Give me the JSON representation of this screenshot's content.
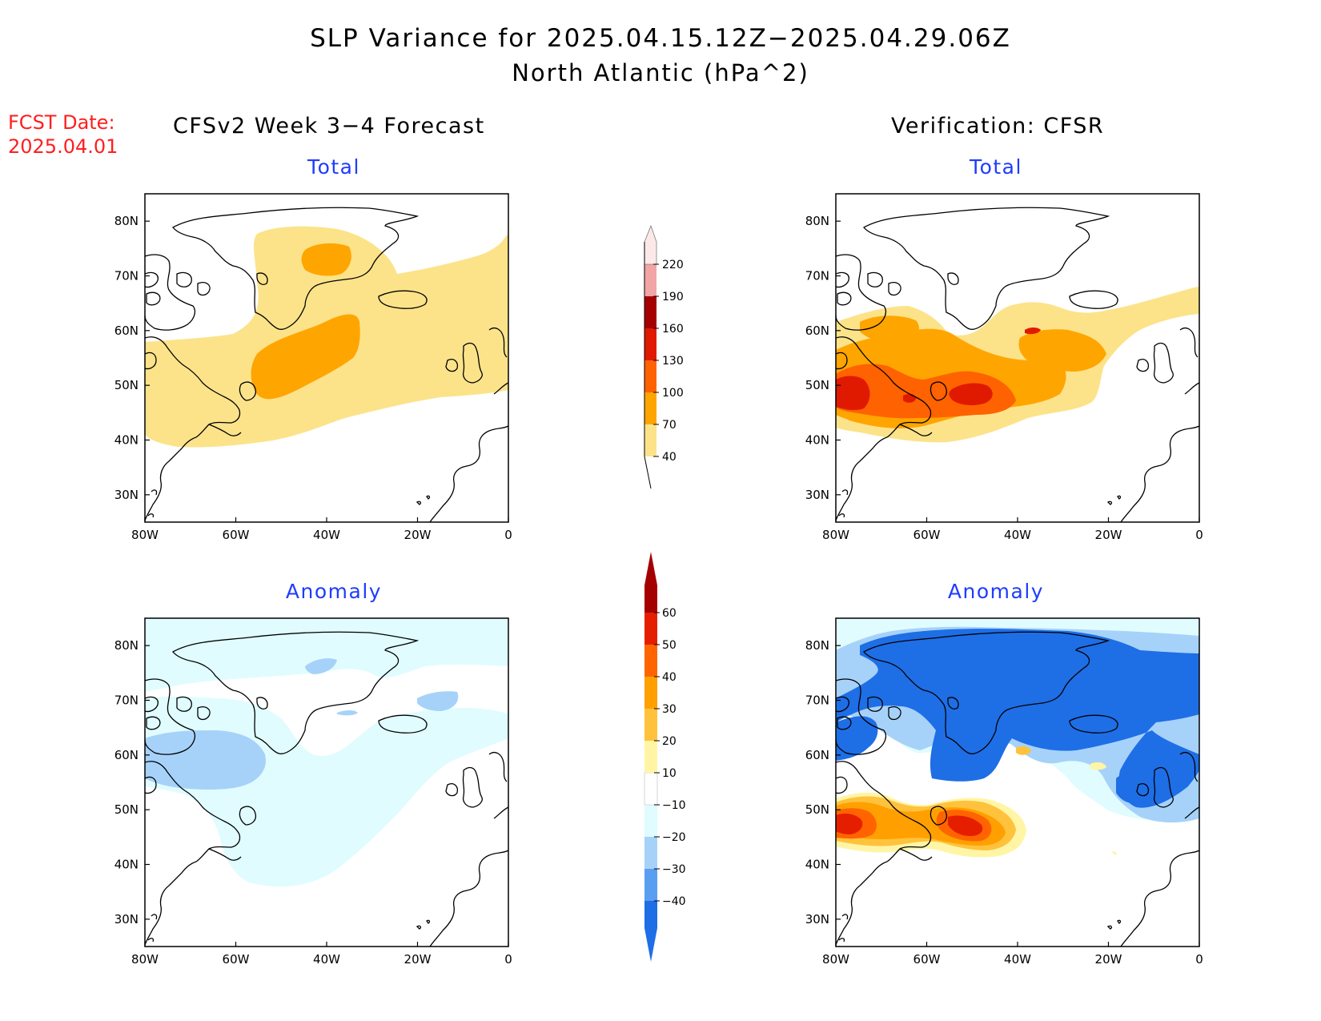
{
  "title": "SLP Variance for 2025.04.15.12Z−2025.04.29.06Z",
  "subtitle": "North Atlantic (hPa^2)",
  "fcst_date": {
    "line1": "FCST Date:",
    "line2": "2025.04.01"
  },
  "columns": {
    "left": "CFSv2 Week 3−4 Forecast",
    "right": "Verification: CFSR"
  },
  "panels": {
    "top_left": {
      "title": "Total"
    },
    "top_right": {
      "title": "Total"
    },
    "bottom_left": {
      "title": "Anomaly"
    },
    "bottom_right": {
      "title": "Anomaly"
    }
  },
  "map_axes": {
    "lat_labels": [
      "80N",
      "70N",
      "60N",
      "50N",
      "40N",
      "30N"
    ],
    "lon_labels": [
      "80W",
      "60W",
      "40W",
      "20W",
      "0"
    ]
  },
  "colorbar_total": {
    "labels": [
      "40",
      "70",
      "100",
      "130",
      "160",
      "190",
      "220"
    ],
    "colors": [
      "#fce38a",
      "#ffa500",
      "#ff6200",
      "#e01a00",
      "#a50000",
      "#f2a5a5",
      "#fde8e8"
    ]
  },
  "colorbar_anomaly": {
    "labels": [
      "−40",
      "−30",
      "−20",
      "−10",
      "10",
      "20",
      "30",
      "40",
      "50",
      "60"
    ],
    "colors": [
      "#1e6ee6",
      "#5a9ef2",
      "#a6d2fa",
      "#e0fcff",
      "#ffffff",
      "#fff5a5",
      "#ffc23c",
      "#ffa000",
      "#ff6400",
      "#e61e00",
      "#a50000"
    ]
  },
  "colors": {
    "total_light": "#fce38a",
    "total_orange": "#ffa500",
    "total_darkorange": "#ff6200",
    "total_red": "#e01a00",
    "anom_lightblue": "#e0fcff",
    "anom_blue1": "#a6d2fa",
    "anom_blue2": "#1e6ee6",
    "anom_yellow": "#fff5a5",
    "anom_orange": "#ffc23c",
    "anom_darkorange": "#ffa000",
    "anom_red": "#e61e00",
    "title_blue": "#1e3cff",
    "fcst_red": "#ff1e1e"
  }
}
